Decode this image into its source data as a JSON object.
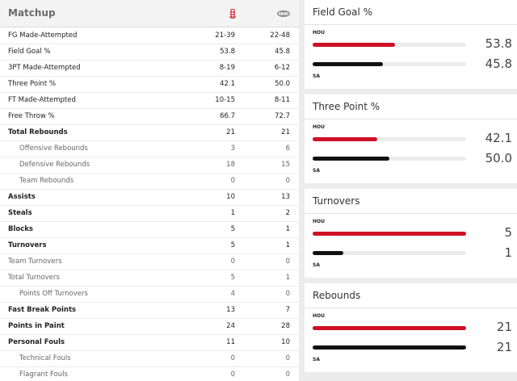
{
  "matchup": {
    "title": "Matchup",
    "teams": [
      {
        "abbr": "HOU",
        "logo_icon": "rockets-logo-icon",
        "color": "#ce1126"
      },
      {
        "abbr": "SA",
        "logo_icon": "spurs-logo-icon",
        "color": "#111111"
      }
    ],
    "rows": [
      {
        "label": "FG Made-Attempted",
        "hou": "21-39",
        "sa": "22-48",
        "style": "main"
      },
      {
        "label": "Field Goal %",
        "hou": "53.8",
        "sa": "45.8",
        "style": "main"
      },
      {
        "label": "3PT Made-Attempted",
        "hou": "8-19",
        "sa": "6-12",
        "style": "main"
      },
      {
        "label": "Three Point %",
        "hou": "42.1",
        "sa": "50.0",
        "style": "main"
      },
      {
        "label": "FT Made-Attempted",
        "hou": "10-15",
        "sa": "8-11",
        "style": "main"
      },
      {
        "label": "Free Throw %",
        "hou": "66.7",
        "sa": "72.7",
        "style": "main"
      },
      {
        "label": "Total Rebounds",
        "hou": "21",
        "sa": "21",
        "style": "main"
      },
      {
        "label": "Offensive Rebounds",
        "hou": "3",
        "sa": "6",
        "style": "sub"
      },
      {
        "label": "Defensive Rebounds",
        "hou": "18",
        "sa": "15",
        "style": "sub"
      },
      {
        "label": "Team Rebounds",
        "hou": "0",
        "sa": "0",
        "style": "sub"
      },
      {
        "label": "Assists",
        "hou": "10",
        "sa": "13",
        "style": "main"
      },
      {
        "label": "Steals",
        "hou": "1",
        "sa": "2",
        "style": "main"
      },
      {
        "label": "Blocks",
        "hou": "5",
        "sa": "1",
        "style": "main"
      },
      {
        "label": "Turnovers",
        "hou": "5",
        "sa": "1",
        "style": "main"
      },
      {
        "label": "Team Turnovers",
        "hou": "0",
        "sa": "0",
        "style": "muted"
      },
      {
        "label": "Total Turnovers",
        "hou": "5",
        "sa": "1",
        "style": "muted"
      },
      {
        "label": "Points Off Turnovers",
        "hou": "4",
        "sa": "0",
        "style": "sub"
      },
      {
        "label": "Fast Break Points",
        "hou": "13",
        "sa": "7",
        "style": "main"
      },
      {
        "label": "Points in Paint",
        "hou": "24",
        "sa": "28",
        "style": "main"
      },
      {
        "label": "Personal Fouls",
        "hou": "11",
        "sa": "10",
        "style": "main"
      },
      {
        "label": "Technical Fouls",
        "hou": "0",
        "sa": "0",
        "style": "sub"
      },
      {
        "label": "Flagrant Fouls",
        "hou": "0",
        "sa": "0",
        "style": "sub"
      }
    ]
  },
  "comparisons": [
    {
      "title": "Field Goal %",
      "hou_label": "HOU",
      "sa_label": "SA",
      "hou_value": "53.8",
      "sa_value": "45.8",
      "hou_fraction": 0.538,
      "sa_fraction": 0.458
    },
    {
      "title": "Three Point %",
      "hou_label": "HOU",
      "sa_label": "SA",
      "hou_value": "42.1",
      "sa_value": "50.0",
      "hou_fraction": 0.421,
      "sa_fraction": 0.5
    },
    {
      "title": "Turnovers",
      "hou_label": "HOU",
      "sa_label": "SA",
      "hou_value": "5",
      "sa_value": "1",
      "hou_fraction": 1.0,
      "sa_fraction": 0.2
    },
    {
      "title": "Rebounds",
      "hou_label": "HOU",
      "sa_label": "SA",
      "hou_value": "21",
      "sa_value": "21",
      "hou_fraction": 1.0,
      "sa_fraction": 1.0
    }
  ]
}
